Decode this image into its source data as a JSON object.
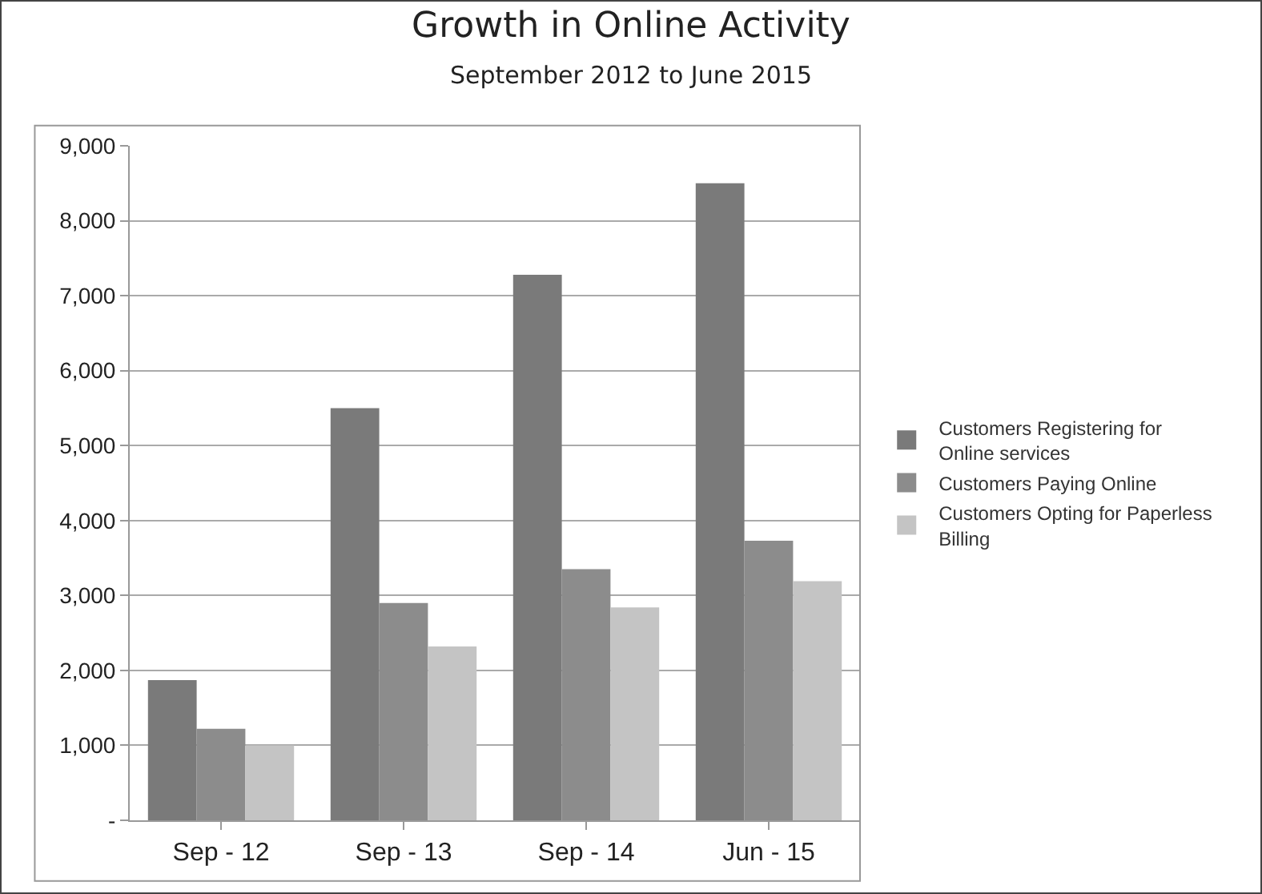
{
  "chart_data": {
    "type": "bar",
    "title": "Growth in Online Activity",
    "subtitle": "September 2012 to June 2015",
    "categories": [
      "Sep - 12",
      "Sep - 13",
      "Sep - 14",
      "Jun - 15"
    ],
    "series": [
      {
        "name": "Customers Registering for Online services",
        "color": "#7a7a7a",
        "values": [
          1870,
          5500,
          7280,
          8500
        ]
      },
      {
        "name": "Customers Paying Online",
        "color": "#8c8c8c",
        "values": [
          1220,
          2900,
          3350,
          3730
        ]
      },
      {
        "name": "Customers Opting for Paperless Billing",
        "color": "#c4c4c4",
        "values": [
          1000,
          2320,
          2840,
          3190
        ]
      }
    ],
    "ylim": [
      0,
      9000
    ],
    "yticks": [
      {
        "value": 0,
        "label": "-"
      },
      {
        "value": 1000,
        "label": "1,000"
      },
      {
        "value": 2000,
        "label": "2,000"
      },
      {
        "value": 3000,
        "label": "3,000"
      },
      {
        "value": 4000,
        "label": "4,000"
      },
      {
        "value": 5000,
        "label": "5,000"
      },
      {
        "value": 6000,
        "label": "6,000"
      },
      {
        "value": 7000,
        "label": "7,000"
      },
      {
        "value": 8000,
        "label": "8,000"
      },
      {
        "value": 9000,
        "label": "9,000"
      }
    ],
    "grid": "y",
    "legend": "right"
  }
}
